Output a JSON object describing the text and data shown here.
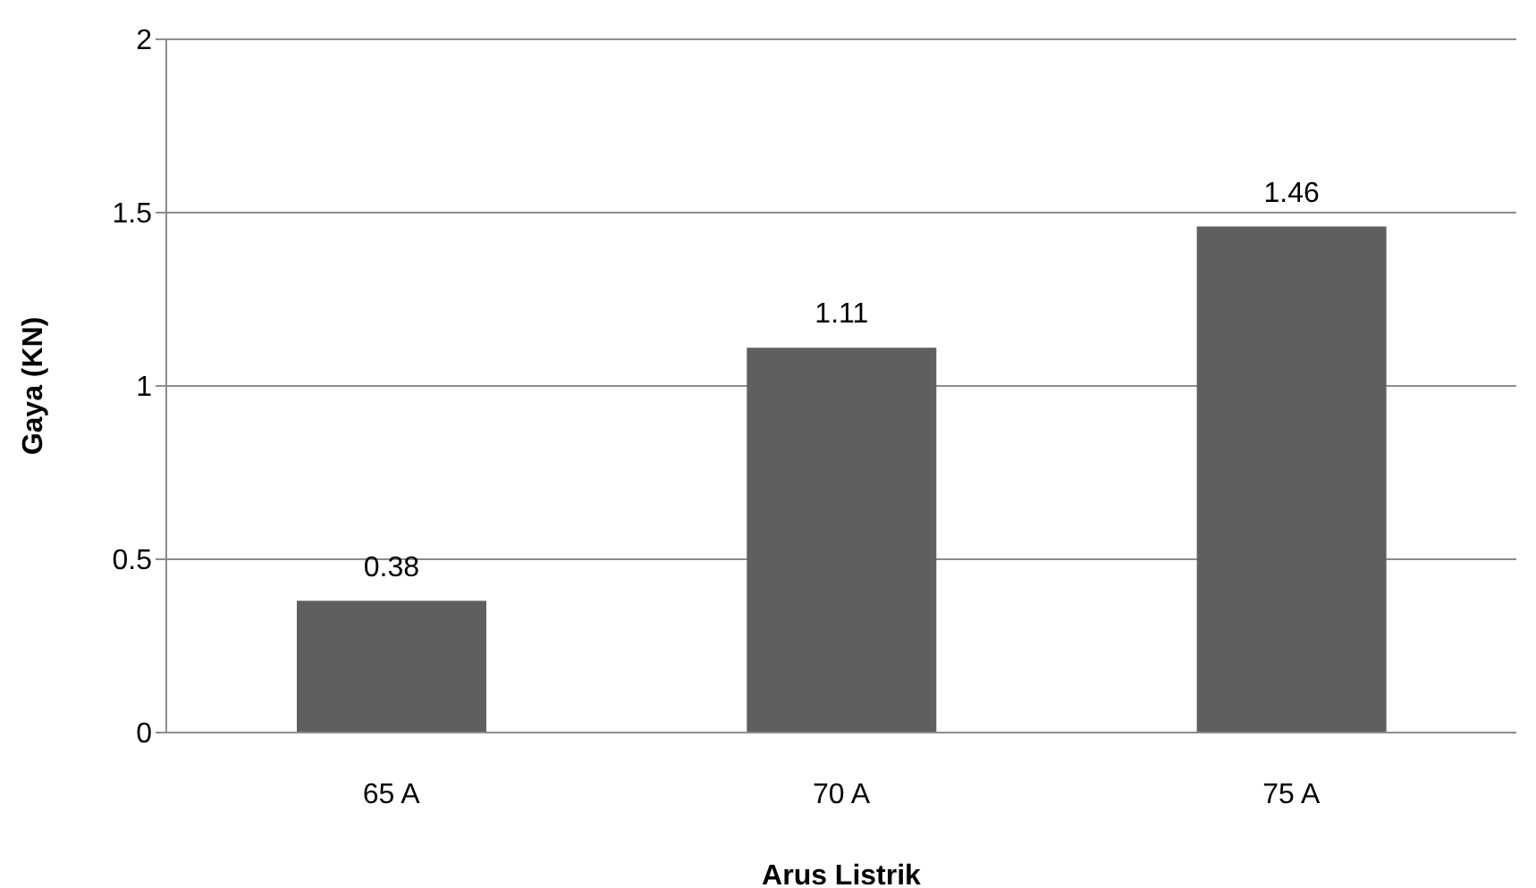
{
  "chart_data": {
    "type": "bar",
    "xlabel": "Arus Listrik",
    "ylabel": "Gaya (KN)",
    "categories": [
      "65 A",
      "70 A",
      "75 A"
    ],
    "series": [
      {
        "color": "#5f5f5f",
        "values": [
          0.38,
          1.11,
          1.46
        ]
      }
    ],
    "ylim": [
      0,
      2
    ],
    "yticks": [
      0,
      0.5,
      1,
      1.5,
      2
    ],
    "grid": "y",
    "data_labels": true,
    "legend": false
  }
}
